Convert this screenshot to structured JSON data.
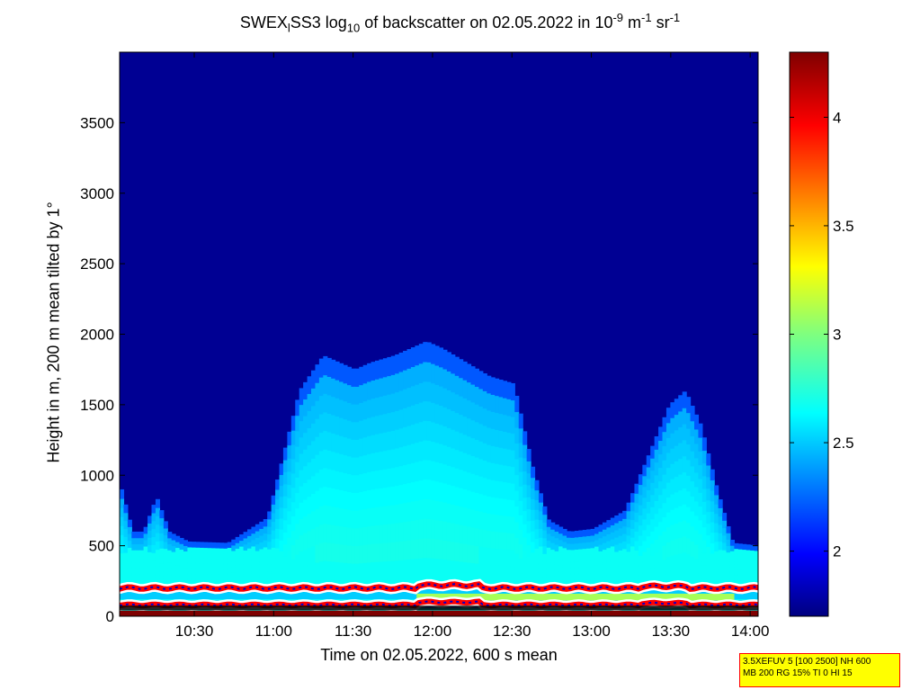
{
  "title": {
    "prefix": "SWEX",
    "sub1": "l",
    "mid": "SS3 log",
    "sub2": "10",
    "rest": " of backscatter on 02.05.2022 in 10",
    "exp1": "-9",
    "unit1": " m",
    "exp2": "-1",
    "unit2": " sr",
    "exp3": "-1"
  },
  "chart_data": {
    "type": "heatmap",
    "xlabel": "Time on 02.05.2022, 600 s mean",
    "ylabel": "Height in m, 200 m mean tilted by 1°",
    "x_ticks": [
      "10:30",
      "11:00",
      "11:30",
      "12:00",
      "12:30",
      "13:00",
      "13:30",
      "14:00"
    ],
    "x_tick_hours": [
      10.5,
      11.0,
      11.5,
      12.0,
      12.5,
      13.0,
      13.5,
      14.0
    ],
    "xlim_hours": [
      10.03,
      14.05
    ],
    "y_ticks": [
      "0",
      "500",
      "1000",
      "1500",
      "2000",
      "2500",
      "3000",
      "3500"
    ],
    "y_tick_values": [
      0,
      500,
      1000,
      1500,
      2000,
      2500,
      3000,
      3500
    ],
    "ylim": [
      0,
      4000
    ],
    "colorbar": {
      "ticks": [
        "2",
        "2.5",
        "3",
        "3.5",
        "4"
      ],
      "tick_values": [
        2,
        2.5,
        3,
        3.5,
        4
      ],
      "range": [
        1.7,
        4.3
      ],
      "colormap": "jet"
    },
    "background_value": 1.75,
    "boundary_layer_top_m": [
      [
        10.03,
        900
      ],
      [
        10.1,
        600
      ],
      [
        10.17,
        600
      ],
      [
        10.25,
        850
      ],
      [
        10.33,
        600
      ],
      [
        10.45,
        530
      ],
      [
        10.7,
        520
      ],
      [
        10.95,
        700
      ],
      [
        11.05,
        1150
      ],
      [
        11.15,
        1600
      ],
      [
        11.3,
        1850
      ],
      [
        11.5,
        1750
      ],
      [
        11.6,
        1800
      ],
      [
        11.75,
        1850
      ],
      [
        11.95,
        1950
      ],
      [
        12.05,
        1900
      ],
      [
        12.2,
        1800
      ],
      [
        12.35,
        1700
      ],
      [
        12.5,
        1650
      ],
      [
        12.62,
        1050
      ],
      [
        12.72,
        680
      ],
      [
        12.85,
        600
      ],
      [
        13.0,
        620
      ],
      [
        13.2,
        750
      ],
      [
        13.35,
        1150
      ],
      [
        13.48,
        1500
      ],
      [
        13.58,
        1600
      ],
      [
        13.68,
        1350
      ],
      [
        13.78,
        900
      ],
      [
        13.88,
        520
      ],
      [
        14.05,
        500
      ]
    ],
    "red_layer_upper_m": 200,
    "red_layer_lower_m": 80
  },
  "infobox": {
    "line1": "3.5XEFUV 5 [100 2500] NH 600",
    "line2": "MB 200 RG 15% TI 0 HI 15"
  }
}
